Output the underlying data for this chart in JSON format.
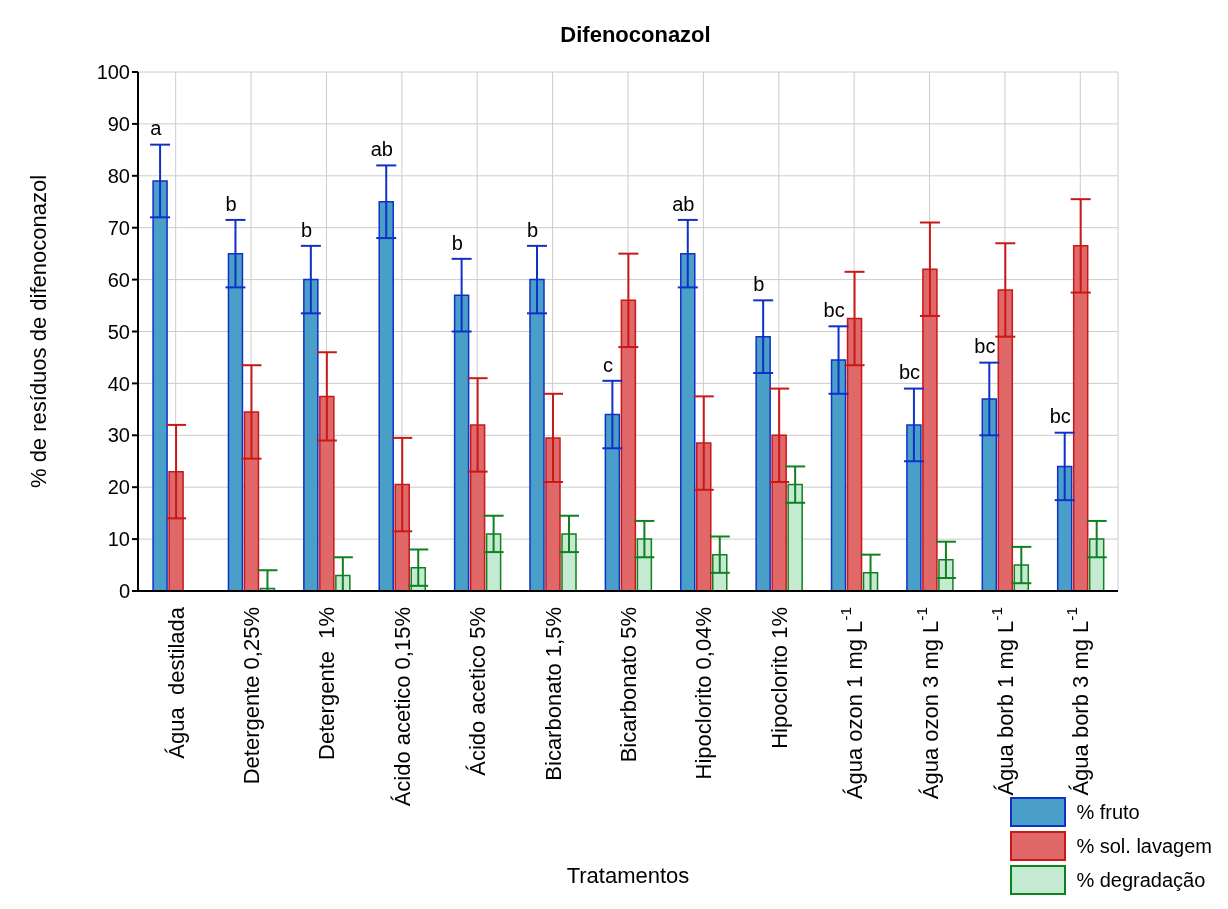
{
  "chart_data": {
    "type": "bar",
    "title": "Difenoconazol",
    "xlabel": "Tratamentos",
    "ylabel": "% de resíduos de difenoconazol",
    "categories": [
      "Água  destilada",
      "Detergente 0,25%",
      "Detergente  1%",
      "Ácido acetico 0,15%",
      "Ácido acetico 5%",
      "Bicarbonato 1,5%",
      "Bicarbonato 5%",
      "Hipoclorito 0,04%",
      "Hipoclorito 1%",
      "Água ozon 1 mg L$^{-1}$",
      "Água ozon 3 mg L$^{-1}$",
      "Água borb 1 mg L$^{-1}$",
      "Água borb 3 mg L$^{-1}$"
    ],
    "series": [
      {
        "name": "% fruto",
        "color": "#4a9fc8",
        "values": [
          79,
          65,
          60,
          75,
          57,
          60,
          34,
          65,
          49,
          44.5,
          32,
          37,
          24
        ],
        "errors": [
          7,
          6.5,
          6.5,
          7,
          7,
          6.5,
          6.5,
          6.5,
          7,
          6.5,
          7,
          7,
          6.5
        ]
      },
      {
        "name": "% sol. lavagem",
        "color": "#e06868",
        "values": [
          23,
          34.5,
          37.5,
          20.5,
          32,
          29.5,
          56,
          28.5,
          30,
          52.5,
          62,
          58,
          66.5
        ],
        "errors": [
          9,
          9,
          8.5,
          9,
          9,
          8.5,
          9,
          9,
          9,
          9,
          9,
          9,
          9
        ]
      },
      {
        "name": "% degradação",
        "color": "#c4ead2",
        "values": [
          null,
          0.5,
          3,
          4.5,
          11,
          11,
          10,
          7,
          20.5,
          3.5,
          6,
          5,
          10
        ],
        "errors": [
          null,
          [
            0,
            4
          ],
          [
            0,
            6.5
          ],
          3.5,
          3.5,
          3.5,
          3.5,
          3.5,
          3.5,
          3.5,
          3.5,
          3.5,
          3.5
        ]
      }
    ],
    "annotations": [
      "a",
      "b",
      "b",
      "ab",
      "b",
      "b",
      "c",
      "ab",
      "b",
      "bc",
      "bc",
      "bc",
      "bc"
    ],
    "ylim": [
      0,
      100
    ],
    "yticks": [
      0,
      10,
      20,
      30,
      40,
      50,
      60,
      70,
      80,
      90,
      100
    ],
    "grid": true,
    "legend": "bottom right"
  }
}
